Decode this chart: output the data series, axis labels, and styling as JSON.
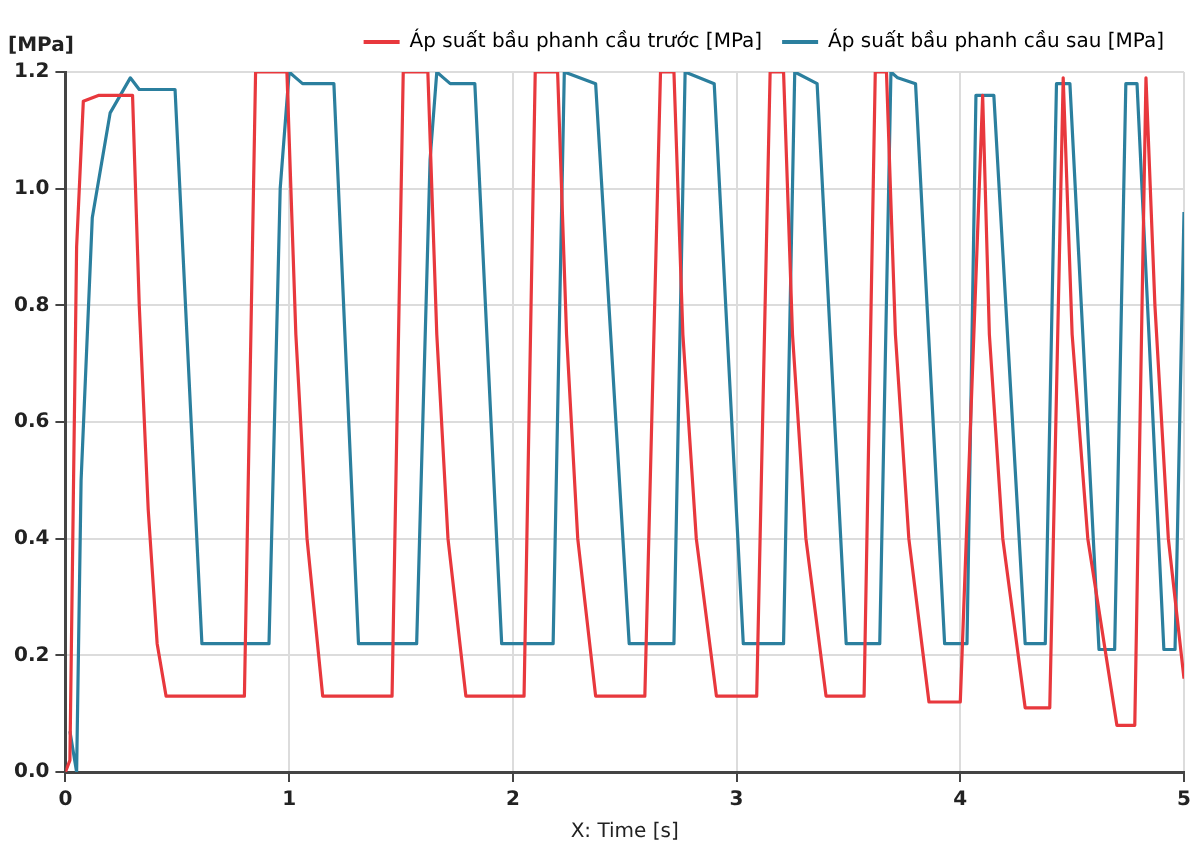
{
  "chart_data": {
    "type": "line",
    "xlabel": "X: Time [s]",
    "ylabel": "[MPa]",
    "xlim": [
      0,
      5
    ],
    "xticks": [
      0,
      1,
      2,
      3,
      4,
      5
    ],
    "ylim": [
      0,
      1.2
    ],
    "yticks": [
      {
        "value": 0,
        "label": "0.0"
      },
      {
        "value": 0.2,
        "label": "0.2"
      },
      {
        "value": 0.4,
        "label": "0.4"
      },
      {
        "value": 0.6,
        "label": "0.6"
      },
      {
        "value": 0.8,
        "label": "0.8"
      },
      {
        "value": 1,
        "label": "1.0"
      },
      {
        "value": 1.2,
        "label": "1.2"
      }
    ],
    "grid": true,
    "legend": "top",
    "marker": "none",
    "line_style": "solid",
    "series": [
      {
        "name": "Áp suất bầu phanh cầu trước [MPa]",
        "color": "#e8383d",
        "x": [
          0,
          0.02,
          0.05,
          0.08,
          0.15,
          0.3,
          0.33,
          0.37,
          0.41,
          0.45,
          0.8,
          0.85,
          0.99,
          1.03,
          1.08,
          1.15,
          1.46,
          1.51,
          1.62,
          1.66,
          1.71,
          1.79,
          2.05,
          2.1,
          2.2,
          2.24,
          2.29,
          2.37,
          2.59,
          2.66,
          2.72,
          2.76,
          2.82,
          2.91,
          3.09,
          3.15,
          3.21,
          3.25,
          3.31,
          3.4,
          3.57,
          3.62,
          3.67,
          3.71,
          3.77,
          3.86,
          4.0,
          4.1,
          4.13,
          4.19,
          4.29,
          4.4,
          4.46,
          4.5,
          4.57,
          4.7,
          4.78,
          4.83,
          4.87,
          4.93,
          5.0
        ],
        "values": [
          0,
          0.02,
          0.9,
          1.15,
          1.16,
          1.16,
          0.8,
          0.45,
          0.22,
          0.13,
          0.13,
          1.2,
          1.2,
          0.75,
          0.4,
          0.13,
          0.13,
          1.2,
          1.2,
          0.75,
          0.4,
          0.13,
          0.13,
          1.2,
          1.2,
          0.75,
          0.4,
          0.13,
          0.13,
          1.2,
          1.2,
          0.75,
          0.4,
          0.13,
          0.13,
          1.2,
          1.2,
          0.75,
          0.4,
          0.13,
          0.13,
          1.2,
          1.2,
          0.75,
          0.4,
          0.12,
          0.12,
          1.16,
          0.75,
          0.4,
          0.11,
          0.11,
          1.19,
          0.75,
          0.4,
          0.08,
          0.08,
          1.19,
          0.8,
          0.4,
          0.16
        ]
      },
      {
        "name": "Áp suất bầu phanh cầu sau [MPa]",
        "color": "#2b7f9e",
        "x": [
          0.02,
          0.05,
          0.07,
          0.12,
          0.2,
          0.29,
          0.33,
          0.49,
          0.61,
          0.91,
          0.96,
          1.0,
          1.03,
          1.06,
          1.2,
          1.31,
          1.57,
          1.63,
          1.66,
          1.69,
          1.72,
          1.83,
          1.95,
          2.18,
          2.23,
          2.37,
          2.52,
          2.72,
          2.77,
          2.9,
          3.03,
          3.21,
          3.26,
          3.36,
          3.49,
          3.64,
          3.69,
          3.72,
          3.8,
          3.93,
          4.03,
          4.07,
          4.15,
          4.29,
          4.38,
          4.43,
          4.49,
          4.62,
          4.69,
          4.74,
          4.79,
          4.91,
          4.96,
          5.0
        ],
        "values": [
          0.07,
          0,
          0.5,
          0.95,
          1.13,
          1.19,
          1.17,
          1.17,
          0.22,
          0.22,
          1.0,
          1.2,
          1.19,
          1.18,
          1.18,
          0.22,
          0.22,
          1.05,
          1.2,
          1.19,
          1.18,
          1.18,
          0.22,
          0.22,
          1.2,
          1.18,
          0.22,
          0.22,
          1.2,
          1.18,
          0.22,
          0.22,
          1.2,
          1.18,
          0.22,
          0.22,
          1.2,
          1.19,
          1.18,
          0.22,
          0.22,
          1.16,
          1.16,
          0.22,
          0.22,
          1.18,
          1.18,
          0.21,
          0.21,
          1.18,
          1.18,
          0.21,
          0.21,
          0.96
        ]
      }
    ]
  }
}
